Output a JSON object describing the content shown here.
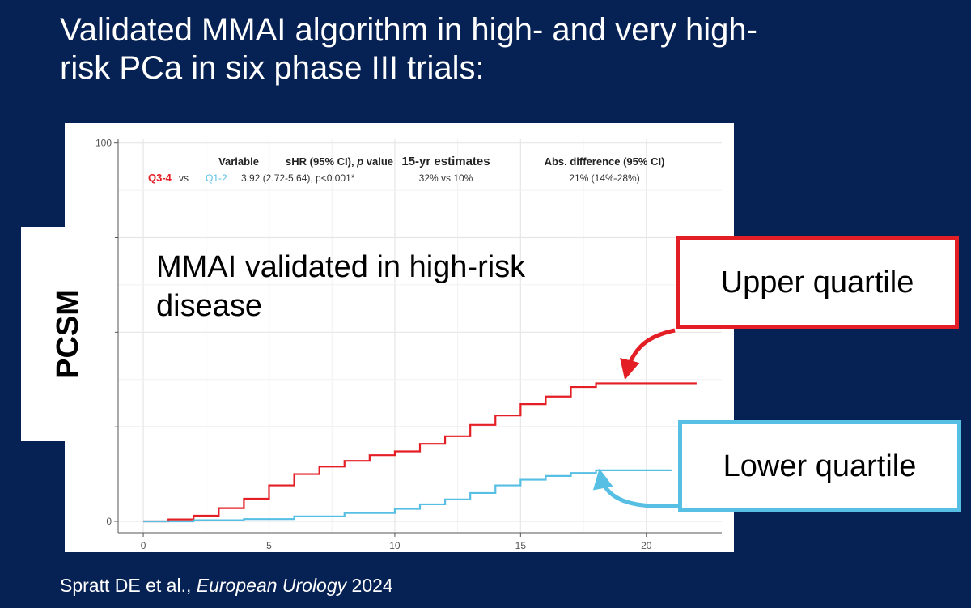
{
  "slide": {
    "title": "Validated MMAI algorithm in high- and very high-risk PCa in six phase III trials:",
    "ylabel": "PCSM",
    "citation_authors": "Spratt DE et al., ",
    "citation_journal": "European Urology",
    "citation_year": " 2024"
  },
  "callouts": {
    "upper": "Upper quartile",
    "lower": "Lower quartile"
  },
  "colors": {
    "background": "#062153",
    "upper": "#e31e24",
    "lower": "#56bfe3"
  },
  "chart_data": {
    "type": "line",
    "annotation": [
      "MMAI validated in high-risk",
      "disease"
    ],
    "x_ticks": [
      0,
      5,
      10,
      15,
      20
    ],
    "y_ticks": [
      0,
      25,
      50,
      75,
      100
    ],
    "xlim": [
      -1,
      23
    ],
    "ylim": [
      -3,
      101
    ],
    "grid": true,
    "stats_table": {
      "headers": {
        "variable": "Variable",
        "shr": "sHR (95% CI), ",
        "shr_p": "p",
        "shr_value": " value",
        "estimates": "15-yr estimates",
        "difference": "Abs. difference (95% CI)"
      },
      "row": {
        "group1": "Q3-4",
        "vs": "vs",
        "group2": "Q1-2",
        "shr": "3.92 (2.72-5.64), p<0.001*",
        "estimates": "32% vs 10%",
        "difference": "21% (14%-28%)"
      }
    },
    "series": [
      {
        "color": "#e31e24",
        "x": [
          0,
          1,
          2,
          3,
          4,
          5,
          6,
          7,
          8,
          9,
          10,
          11,
          12,
          13,
          14,
          15,
          16,
          17,
          18,
          19,
          20,
          21,
          22
        ],
        "y": [
          0,
          0.5,
          1.5,
          3.5,
          6,
          9.5,
          12.5,
          14.5,
          16,
          17.5,
          18.5,
          20.5,
          22.5,
          25.5,
          28,
          31,
          33,
          35.5,
          36.5,
          36.5,
          36.5,
          36.5,
          36.5
        ]
      },
      {
        "color": "#56bfe3",
        "x": [
          0,
          2,
          4,
          6,
          8,
          10,
          11,
          12,
          13,
          14,
          15,
          16,
          17,
          18,
          19,
          20,
          21
        ],
        "y": [
          0,
          0.3,
          0.6,
          1.3,
          2.2,
          3.3,
          4.5,
          5.8,
          7.5,
          9.5,
          11,
          12,
          12.8,
          13.5,
          13.5,
          13.5,
          13.5
        ]
      }
    ]
  }
}
